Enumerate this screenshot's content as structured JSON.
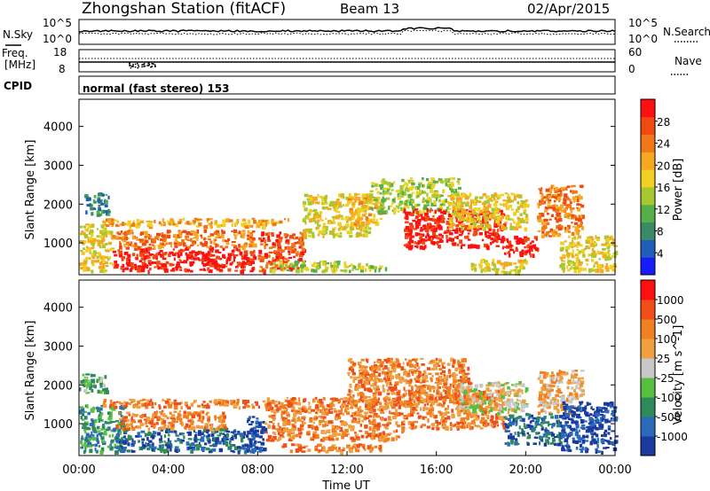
{
  "header": {
    "station": "Zhongshan Station (fitACF)",
    "beam": "Beam 13",
    "date": "02/Apr/2015"
  },
  "noise_panel": {
    "left_label": "N.Sky",
    "right_label": "N.Search",
    "left_ticks": [
      "10^5",
      "10^0"
    ],
    "right_ticks": [
      "10^5",
      "10^0"
    ]
  },
  "freq_panel": {
    "left_label_1": "Freq.",
    "left_label_2": "[MHz]",
    "right_label": "Nave",
    "left_ticks": [
      "18",
      "8"
    ],
    "right_ticks": [
      "60",
      "0"
    ]
  },
  "cpid_panel": {
    "label": "CPID",
    "value": "normal (fast stereo) 153"
  },
  "chart_data": [
    {
      "type": "heatmap",
      "quantity": "Power",
      "ylabel": "Slant Range [km]",
      "y_ticks": [
        "1000",
        "2000",
        "3000",
        "4000"
      ],
      "ylim": [
        180,
        4700
      ],
      "colorbar_label": "Power [dB]",
      "colorbar_ticks": [
        "4",
        "8",
        "12",
        "16",
        "20",
        "24",
        "28"
      ],
      "colors": [
        "#1a1aff",
        "#1f5fb8",
        "#3a8a66",
        "#55b04a",
        "#a8c830",
        "#f0d020",
        "#f5a820",
        "#f07818",
        "#f04a10",
        "#ff1010"
      ],
      "regions": [
        {
          "t0": 0.2,
          "t1": 1.3,
          "r0": 1700,
          "r1": 2300,
          "level": 2
        },
        {
          "t0": 0.0,
          "t1": 1.5,
          "r0": 300,
          "r1": 1500,
          "level": 5
        },
        {
          "t0": 1.5,
          "t1": 7.8,
          "r0": 300,
          "r1": 900,
          "level": 9
        },
        {
          "t0": 1.5,
          "t1": 7.8,
          "r0": 900,
          "r1": 1350,
          "level": 7
        },
        {
          "t0": 1.0,
          "t1": 9.5,
          "r0": 1450,
          "r1": 1650,
          "level": 6
        },
        {
          "t0": 8.0,
          "t1": 10.0,
          "r0": 300,
          "r1": 1300,
          "level": 8
        },
        {
          "t0": 8.5,
          "t1": 12.0,
          "r0": 300,
          "r1": 550,
          "level": 4
        },
        {
          "t0": 10.0,
          "t1": 13.0,
          "r0": 1200,
          "r1": 2300,
          "level": 5
        },
        {
          "t0": 12.0,
          "t1": 13.5,
          "r0": 1500,
          "r1": 2200,
          "level": 6
        },
        {
          "t0": 12.0,
          "t1": 13.8,
          "r0": 300,
          "r1": 500,
          "level": 4
        },
        {
          "t0": 13.0,
          "t1": 17.0,
          "r0": 1800,
          "r1": 2700,
          "level": 4
        },
        {
          "t0": 14.5,
          "t1": 19.0,
          "r0": 900,
          "r1": 1900,
          "level": 9
        },
        {
          "t0": 16.5,
          "t1": 20.0,
          "r0": 1400,
          "r1": 2300,
          "level": 5
        },
        {
          "t0": 17.5,
          "t1": 20.0,
          "r0": 250,
          "r1": 600,
          "level": 5
        },
        {
          "t0": 19.0,
          "t1": 20.5,
          "r0": 700,
          "r1": 1200,
          "level": 9
        },
        {
          "t0": 20.5,
          "t1": 22.5,
          "r0": 1200,
          "r1": 2500,
          "level": 7
        },
        {
          "t0": 21.5,
          "t1": 24.0,
          "r0": 300,
          "r1": 1200,
          "level": 5
        }
      ]
    },
    {
      "type": "heatmap",
      "quantity": "Velocity",
      "ylabel": "Slant Range [km]",
      "y_ticks": [
        "1000",
        "2000",
        "3000",
        "4000"
      ],
      "ylim": [
        180,
        4700
      ],
      "colorbar_label": "Velocity [m s^-1]",
      "colorbar_ticks": [
        "1000",
        "500",
        "100",
        "25",
        "-25",
        "-100",
        "-500",
        "-1000"
      ],
      "colors": [
        "#1a3aa0",
        "#2a6ab8",
        "#2e8a5a",
        "#58c040",
        "#c8c8c8",
        "#f0a040",
        "#f08020",
        "#f05018",
        "#ff1010"
      ],
      "regions": [
        {
          "t0": 0.0,
          "t1": 1.3,
          "r0": 1800,
          "r1": 2300,
          "level": 3
        },
        {
          "t0": 0.0,
          "t1": 2.0,
          "r0": 300,
          "r1": 1500,
          "level": 2
        },
        {
          "t0": 1.5,
          "t1": 7.8,
          "r0": 300,
          "r1": 900,
          "level": 1
        },
        {
          "t0": 1.5,
          "t1": 6.5,
          "r0": 900,
          "r1": 1350,
          "level": 6
        },
        {
          "t0": 1.0,
          "t1": 9.0,
          "r0": 1450,
          "r1": 1650,
          "level": 6
        },
        {
          "t0": 7.5,
          "t1": 8.3,
          "r0": 300,
          "r1": 1200,
          "level": 0
        },
        {
          "t0": 8.3,
          "t1": 14.5,
          "r0": 600,
          "r1": 1700,
          "level": 6
        },
        {
          "t0": 9.0,
          "t1": 13.5,
          "r0": 300,
          "r1": 500,
          "level": 6
        },
        {
          "t0": 12.0,
          "t1": 17.5,
          "r0": 1500,
          "r1": 2700,
          "level": 6
        },
        {
          "t0": 14.5,
          "t1": 19.0,
          "r0": 900,
          "r1": 1900,
          "level": 6
        },
        {
          "t0": 17.0,
          "t1": 20.0,
          "r0": 1300,
          "r1": 2100,
          "level": 4
        },
        {
          "t0": 19.0,
          "t1": 21.5,
          "r0": 500,
          "r1": 1300,
          "level": 1
        },
        {
          "t0": 20.5,
          "t1": 22.5,
          "r0": 1300,
          "r1": 2400,
          "level": 5
        },
        {
          "t0": 21.5,
          "t1": 24.0,
          "r0": 300,
          "r1": 1600,
          "level": 0
        }
      ]
    }
  ],
  "x_axis": {
    "label": "Time UT",
    "ticks": [
      "00:00",
      "04:00",
      "08:00",
      "12:00",
      "16:00",
      "20:00",
      "00:00"
    ]
  }
}
